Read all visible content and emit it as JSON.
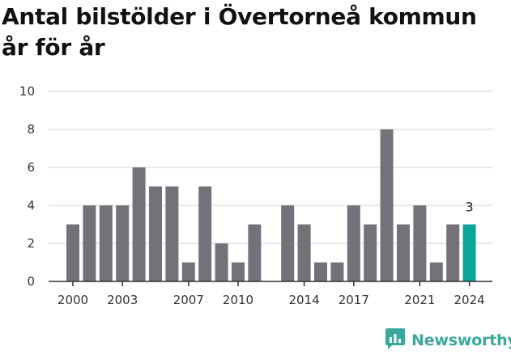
{
  "chart_data": {
    "type": "bar",
    "title": "Antal bilstölder i Övertorneå kommun år för år",
    "xlabel": "",
    "ylabel": "",
    "ylim": [
      0,
      10
    ],
    "yticks": [
      0,
      2,
      4,
      6,
      8,
      10
    ],
    "xticks": [
      2000,
      2003,
      2007,
      2010,
      2014,
      2017,
      2021,
      2024
    ],
    "categories": [
      2000,
      2001,
      2002,
      2003,
      2004,
      2005,
      2006,
      2007,
      2008,
      2009,
      2010,
      2011,
      2012,
      2013,
      2014,
      2015,
      2016,
      2017,
      2018,
      2019,
      2020,
      2021,
      2022,
      2023,
      2024
    ],
    "values": [
      3,
      4,
      4,
      4,
      6,
      5,
      5,
      1,
      5,
      2,
      1,
      3,
      null,
      4,
      3,
      1,
      1,
      4,
      3,
      8,
      3,
      4,
      1,
      3,
      3
    ],
    "highlight": {
      "category": 2024,
      "label": "3"
    },
    "grid": true,
    "colors": {
      "bar": "#737278",
      "highlight": "#0ca59a",
      "grid": "#d9d9d9",
      "axis": "#333333"
    }
  },
  "brand": {
    "name": "Newsworthy",
    "icon": "newsworthy-logo-icon",
    "color": "#3aa89a"
  }
}
